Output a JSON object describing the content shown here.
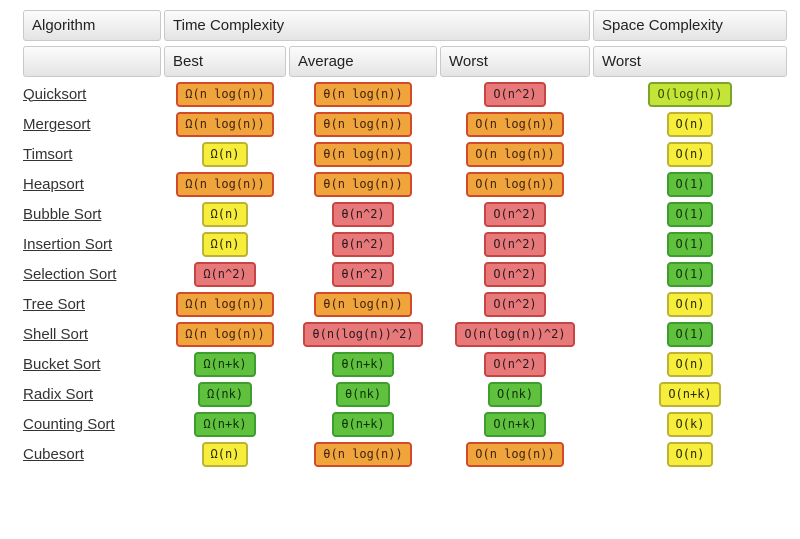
{
  "chart_data": {
    "type": "table",
    "column_groups": [
      {
        "label": "Algorithm",
        "span": 1
      },
      {
        "label": "Time Complexity",
        "span": 3
      },
      {
        "label": "Space Complexity",
        "span": 1
      }
    ],
    "sub_headers": [
      "",
      "Best",
      "Average",
      "Worst",
      "Worst"
    ],
    "badge_styles": {
      "orange": {
        "bg": "#f0a53c",
        "border": "#d14b2b",
        "text": "#44220f"
      },
      "red": {
        "bg": "#e8797b",
        "border": "#c94543",
        "text": "#2b1a1f"
      },
      "yellow": {
        "bg": "#f6ee3b",
        "border": "#bcb233",
        "text": "#2c2a0a"
      },
      "yellow-green": {
        "bg": "#c4e437",
        "border": "#7ba428",
        "text": "#2e4d05"
      },
      "green": {
        "bg": "#5fc13d",
        "border": "#3d9e2e",
        "text": "#10300b"
      }
    },
    "rows": [
      {
        "algorithm": "Quicksort",
        "cells": [
          {
            "text": "Ω(n log(n))",
            "color": "orange"
          },
          {
            "text": "θ(n log(n))",
            "color": "orange"
          },
          {
            "text": "O(n^2)",
            "color": "red"
          },
          {
            "text": "O(log(n))",
            "color": "yellow-green"
          }
        ]
      },
      {
        "algorithm": "Mergesort",
        "cells": [
          {
            "text": "Ω(n log(n))",
            "color": "orange"
          },
          {
            "text": "θ(n log(n))",
            "color": "orange"
          },
          {
            "text": "O(n log(n))",
            "color": "orange"
          },
          {
            "text": "O(n)",
            "color": "yellow"
          }
        ]
      },
      {
        "algorithm": "Timsort",
        "cells": [
          {
            "text": "Ω(n)",
            "color": "yellow"
          },
          {
            "text": "θ(n log(n))",
            "color": "orange"
          },
          {
            "text": "O(n log(n))",
            "color": "orange"
          },
          {
            "text": "O(n)",
            "color": "yellow"
          }
        ]
      },
      {
        "algorithm": "Heapsort",
        "cells": [
          {
            "text": "Ω(n log(n))",
            "color": "orange"
          },
          {
            "text": "θ(n log(n))",
            "color": "orange"
          },
          {
            "text": "O(n log(n))",
            "color": "orange"
          },
          {
            "text": "O(1)",
            "color": "green"
          }
        ]
      },
      {
        "algorithm": "Bubble Sort",
        "cells": [
          {
            "text": "Ω(n)",
            "color": "yellow"
          },
          {
            "text": "θ(n^2)",
            "color": "red"
          },
          {
            "text": "O(n^2)",
            "color": "red"
          },
          {
            "text": "O(1)",
            "color": "green"
          }
        ]
      },
      {
        "algorithm": "Insertion Sort",
        "cells": [
          {
            "text": "Ω(n)",
            "color": "yellow"
          },
          {
            "text": "θ(n^2)",
            "color": "red"
          },
          {
            "text": "O(n^2)",
            "color": "red"
          },
          {
            "text": "O(1)",
            "color": "green"
          }
        ]
      },
      {
        "algorithm": "Selection Sort",
        "cells": [
          {
            "text": "Ω(n^2)",
            "color": "red"
          },
          {
            "text": "θ(n^2)",
            "color": "red"
          },
          {
            "text": "O(n^2)",
            "color": "red"
          },
          {
            "text": "O(1)",
            "color": "green"
          }
        ]
      },
      {
        "algorithm": "Tree Sort",
        "cells": [
          {
            "text": "Ω(n log(n))",
            "color": "orange"
          },
          {
            "text": "θ(n log(n))",
            "color": "orange"
          },
          {
            "text": "O(n^2)",
            "color": "red"
          },
          {
            "text": "O(n)",
            "color": "yellow"
          }
        ]
      },
      {
        "algorithm": "Shell Sort",
        "cells": [
          {
            "text": "Ω(n log(n))",
            "color": "orange"
          },
          {
            "text": "θ(n(log(n))^2)",
            "color": "red"
          },
          {
            "text": "O(n(log(n))^2)",
            "color": "red"
          },
          {
            "text": "O(1)",
            "color": "green"
          }
        ]
      },
      {
        "algorithm": "Bucket Sort",
        "cells": [
          {
            "text": "Ω(n+k)",
            "color": "green"
          },
          {
            "text": "θ(n+k)",
            "color": "green"
          },
          {
            "text": "O(n^2)",
            "color": "red"
          },
          {
            "text": "O(n)",
            "color": "yellow"
          }
        ]
      },
      {
        "algorithm": "Radix Sort",
        "cells": [
          {
            "text": "Ω(nk)",
            "color": "green"
          },
          {
            "text": "θ(nk)",
            "color": "green"
          },
          {
            "text": "O(nk)",
            "color": "green"
          },
          {
            "text": "O(n+k)",
            "color": "yellow"
          }
        ]
      },
      {
        "algorithm": "Counting Sort",
        "cells": [
          {
            "text": "Ω(n+k)",
            "color": "green"
          },
          {
            "text": "θ(n+k)",
            "color": "green"
          },
          {
            "text": "O(n+k)",
            "color": "green"
          },
          {
            "text": "O(k)",
            "color": "yellow"
          }
        ]
      },
      {
        "algorithm": "Cubesort",
        "cells": [
          {
            "text": "Ω(n)",
            "color": "yellow"
          },
          {
            "text": "θ(n log(n))",
            "color": "orange"
          },
          {
            "text": "O(n log(n))",
            "color": "orange"
          },
          {
            "text": "O(n)",
            "color": "yellow"
          }
        ]
      }
    ]
  }
}
